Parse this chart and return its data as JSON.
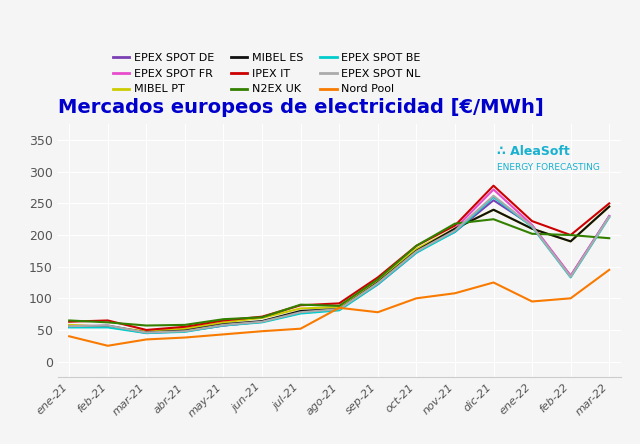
{
  "title": "Mercados europeos de electricidad [€/MWh]",
  "title_color": "#0000cc",
  "background_color": "#f5f5f5",
  "xlabels": [
    "ene-21",
    "feb-21",
    "mar-21",
    "abr-21",
    "may-21",
    "jun-21",
    "jul-21",
    "ago-21",
    "sep-21",
    "oct-21",
    "nov-21",
    "dic-21",
    "ene-22",
    "feb-22",
    "mar-22"
  ],
  "ylim": [
    -25,
    375
  ],
  "yticks": [
    0,
    50,
    100,
    150,
    200,
    250,
    300,
    350
  ],
  "series": [
    {
      "label": "EPEX SPOT DE",
      "color": "#7b3fb5",
      "values": [
        55,
        57,
        46,
        48,
        57,
        63,
        78,
        82,
        125,
        175,
        205,
        255,
        215,
        135,
        230
      ]
    },
    {
      "label": "EPEX SPOT FR",
      "color": "#e84ccc",
      "values": [
        57,
        56,
        45,
        48,
        57,
        63,
        77,
        82,
        122,
        172,
        210,
        272,
        216,
        136,
        230
      ]
    },
    {
      "label": "MIBEL PT",
      "color": "#cccc00",
      "values": [
        58,
        55,
        48,
        52,
        62,
        69,
        84,
        86,
        128,
        178,
        210,
        240,
        210,
        190,
        245
      ]
    },
    {
      "label": "MIBEL ES",
      "color": "#111111",
      "values": [
        55,
        56,
        46,
        49,
        59,
        64,
        80,
        83,
        125,
        175,
        210,
        240,
        210,
        190,
        245
      ]
    },
    {
      "label": "IPEX IT",
      "color": "#cc0000",
      "values": [
        63,
        65,
        50,
        55,
        65,
        71,
        89,
        92,
        133,
        183,
        215,
        278,
        222,
        200,
        250
      ]
    },
    {
      "label": "N2EX UK",
      "color": "#338000",
      "values": [
        65,
        62,
        57,
        58,
        67,
        70,
        90,
        88,
        130,
        183,
        218,
        225,
        202,
        200,
        195
      ]
    },
    {
      "label": "EPEX SPOT BE",
      "color": "#00cccc",
      "values": [
        54,
        54,
        45,
        47,
        57,
        62,
        76,
        81,
        122,
        172,
        205,
        260,
        213,
        133,
        228
      ]
    },
    {
      "label": "EPEX SPOT NL",
      "color": "#aaaaaa",
      "values": [
        56,
        57,
        46,
        48,
        58,
        63,
        78,
        83,
        124,
        174,
        207,
        262,
        214,
        134,
        229
      ]
    },
    {
      "label": "Nord Pool",
      "color": "#f97a00",
      "values": [
        40,
        25,
        35,
        38,
        43,
        48,
        52,
        85,
        78,
        100,
        108,
        125,
        95,
        100,
        145
      ]
    }
  ]
}
